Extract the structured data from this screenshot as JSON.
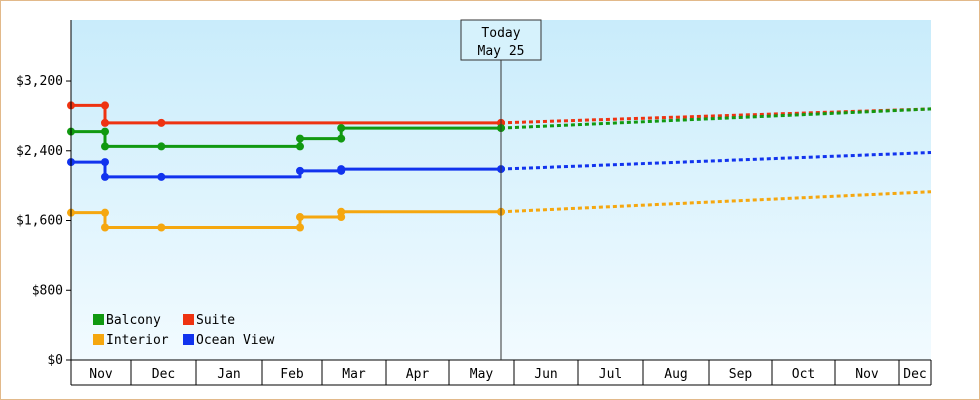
{
  "chart_data": {
    "type": "line",
    "ylim": [
      0,
      3900
    ],
    "y_ticks": [
      {
        "value": 0,
        "label": "$0"
      },
      {
        "value": 800,
        "label": "$800"
      },
      {
        "value": 1600,
        "label": "$1,600"
      },
      {
        "value": 2400,
        "label": "$2,400"
      },
      {
        "value": 3200,
        "label": "$3,200"
      }
    ],
    "x_months": [
      "Nov",
      "Dec",
      "Jan",
      "Feb",
      "Mar",
      "Apr",
      "May",
      "Jun",
      "Jul",
      "Aug",
      "Sep",
      "Oct",
      "Nov",
      "Dec"
    ],
    "today": {
      "line1": "Today",
      "line2": "May 25"
    },
    "legend_placement": "bottom-left",
    "series": [
      {
        "name": "Suite",
        "color": "#ee3311",
        "history": [
          [
            "Nov 1",
            2920
          ],
          [
            "Nov 18",
            2920
          ],
          [
            "Nov 18",
            2720
          ],
          [
            "Dec 15",
            2720
          ],
          [
            "May 25",
            2720
          ]
        ],
        "markers": [
          [
            "Nov 1",
            2920
          ],
          [
            "Nov 18",
            2920
          ],
          [
            "Nov 18",
            2720
          ],
          [
            "Dec 15",
            2720
          ],
          [
            "May 25",
            2720
          ]
        ],
        "forecast": [
          [
            "May 25",
            2720
          ],
          [
            "Dec 15",
            2880
          ]
        ]
      },
      {
        "name": "Balcony",
        "color": "#119911",
        "history": [
          [
            "Nov 1",
            2620
          ],
          [
            "Nov 18",
            2620
          ],
          [
            "Nov 18",
            2450
          ],
          [
            "Dec 15",
            2450
          ],
          [
            "Feb 20",
            2450
          ],
          [
            "Feb 20",
            2540
          ],
          [
            "Mar 10",
            2540
          ],
          [
            "Mar 10",
            2660
          ],
          [
            "May 25",
            2660
          ]
        ],
        "markers": [
          [
            "Nov 1",
            2620
          ],
          [
            "Nov 18",
            2620
          ],
          [
            "Nov 18",
            2450
          ],
          [
            "Dec 15",
            2450
          ],
          [
            "Feb 20",
            2450
          ],
          [
            "Feb 20",
            2540
          ],
          [
            "Mar 10",
            2540
          ],
          [
            "Mar 10",
            2660
          ],
          [
            "May 25",
            2660
          ]
        ],
        "forecast": [
          [
            "May 25",
            2660
          ],
          [
            "Dec 15",
            2880
          ]
        ]
      },
      {
        "name": "Ocean View",
        "color": "#1133ee",
        "history": [
          [
            "Nov 1",
            2270
          ],
          [
            "Nov 18",
            2270
          ],
          [
            "Nov 18",
            2100
          ],
          [
            "Dec 15",
            2100
          ],
          [
            "Feb 20",
            2100
          ],
          [
            "Feb 20",
            2170
          ],
          [
            "Mar 10",
            2170
          ],
          [
            "Mar 10",
            2190
          ],
          [
            "May 25",
            2190
          ]
        ],
        "markers": [
          [
            "Nov 1",
            2270
          ],
          [
            "Nov 18",
            2270
          ],
          [
            "Nov 18",
            2100
          ],
          [
            "Dec 15",
            2100
          ],
          [
            "Feb 20",
            2170
          ],
          [
            "Mar 10",
            2170
          ],
          [
            "Mar 10",
            2190
          ],
          [
            "May 25",
            2190
          ]
        ],
        "forecast": [
          [
            "May 25",
            2190
          ],
          [
            "Dec 15",
            2380
          ]
        ]
      },
      {
        "name": "Interior",
        "color": "#f5a70f",
        "history": [
          [
            "Nov 1",
            1690
          ],
          [
            "Nov 18",
            1690
          ],
          [
            "Nov 18",
            1520
          ],
          [
            "Dec 15",
            1520
          ],
          [
            "Feb 20",
            1520
          ],
          [
            "Feb 20",
            1640
          ],
          [
            "Mar 10",
            1640
          ],
          [
            "Mar 10",
            1700
          ],
          [
            "May 25",
            1700
          ]
        ],
        "markers": [
          [
            "Nov 1",
            1690
          ],
          [
            "Nov 18",
            1690
          ],
          [
            "Nov 18",
            1520
          ],
          [
            "Dec 15",
            1520
          ],
          [
            "Feb 20",
            1520
          ],
          [
            "Feb 20",
            1640
          ],
          [
            "Mar 10",
            1640
          ],
          [
            "Mar 10",
            1700
          ],
          [
            "May 25",
            1700
          ]
        ],
        "forecast": [
          [
            "May 25",
            1700
          ],
          [
            "Dec 15",
            1930
          ]
        ]
      }
    ],
    "legend": [
      {
        "name": "Balcony",
        "color": "#119911"
      },
      {
        "name": "Suite",
        "color": "#ee3311"
      },
      {
        "name": "Interior",
        "color": "#f5a70f"
      },
      {
        "name": "Ocean View",
        "color": "#1133ee"
      }
    ]
  }
}
